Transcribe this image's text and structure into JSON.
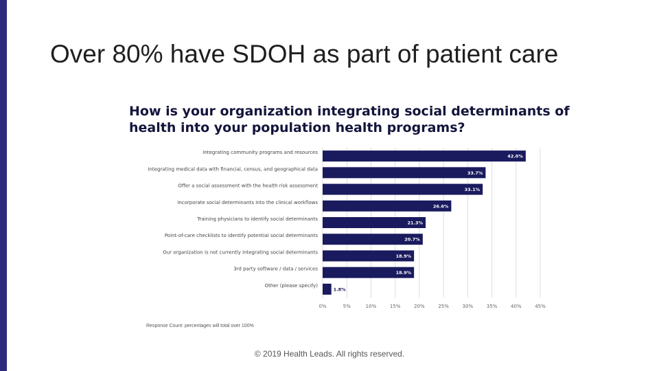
{
  "slide": {
    "title": "Over 80% have SDOH as part of patient care",
    "copyright": "© 2019 Health Leads. All rights reserved.",
    "accent_color": "#2f2a7a"
  },
  "chart_data": {
    "type": "bar",
    "orientation": "horizontal",
    "title_lines": [
      "How is your organization integrating social determinants of",
      "health into your population health programs?"
    ],
    "categories": [
      "Integrating community programs and resources",
      "Integrating medical data with financial, census, and geographical data",
      "Offer a social assessment with the health risk assessment",
      "Incorporate social determinants into the clinical workflows",
      "Training physicians to identify social determinants",
      "Point-of-care checklists to identify potential social determinants",
      "Our organization is not currently integrating social determinants",
      "3rd party software / data / services",
      "Other (please specify)"
    ],
    "values": [
      42.0,
      33.7,
      33.1,
      26.6,
      21.3,
      20.7,
      18.9,
      18.9,
      1.8
    ],
    "value_labels": [
      "42.0%",
      "33.7%",
      "33.1%",
      "26.6%",
      "21.3%",
      "20.7%",
      "18.9%",
      "18.9%",
      "1.8%"
    ],
    "xlim": [
      0,
      45
    ],
    "xticks": [
      0,
      5,
      10,
      15,
      20,
      25,
      30,
      35,
      40,
      45
    ],
    "xtick_labels": [
      "0%",
      "5%",
      "10%",
      "15%",
      "20%",
      "25%",
      "30%",
      "35%",
      "40%",
      "45%"
    ],
    "grid": true,
    "bar_color": "#1a1a5e",
    "footnote": "Response Count: percentages will total over 100%"
  }
}
